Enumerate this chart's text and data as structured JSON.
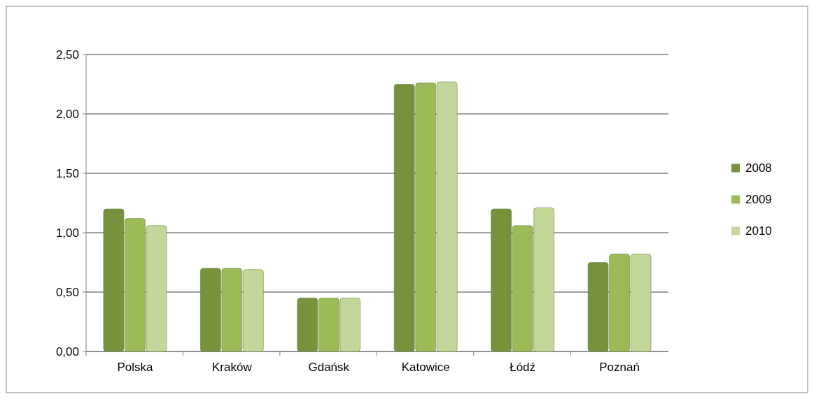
{
  "chart_data": {
    "type": "bar",
    "categories": [
      "Polska",
      "Kraków",
      "Gdańsk",
      "Katowice",
      "Łódź",
      "Poznań"
    ],
    "series": [
      {
        "name": "2008",
        "color": "#76933c",
        "values": [
          1.2,
          0.7,
          0.45,
          2.25,
          1.2,
          0.75
        ]
      },
      {
        "name": "2009",
        "color": "#9bbb59",
        "values": [
          1.12,
          0.7,
          0.45,
          2.26,
          1.06,
          0.82
        ]
      },
      {
        "name": "2010",
        "color": "#c4d79b",
        "values": [
          1.06,
          0.69,
          0.45,
          2.27,
          1.21,
          0.82
        ]
      }
    ],
    "ylim": [
      0,
      2.5
    ],
    "yticks": [
      {
        "value": 0,
        "label": "0,00"
      },
      {
        "value": 0.5,
        "label": "0,50"
      },
      {
        "value": 1,
        "label": "1,00"
      },
      {
        "value": 1.5,
        "label": "1,50"
      },
      {
        "value": 2,
        "label": "2,00"
      },
      {
        "value": 2.5,
        "label": "2,50"
      }
    ],
    "grid": "y",
    "legend": "right"
  }
}
